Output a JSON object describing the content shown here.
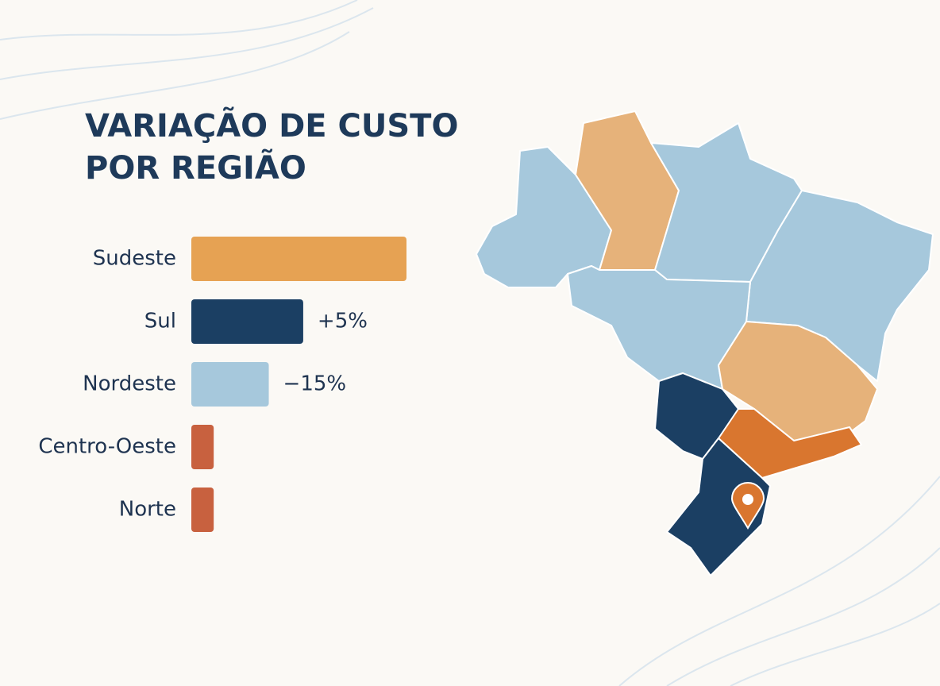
{
  "chart_data": {
    "type": "bar",
    "orientation": "horizontal",
    "title_lines": [
      "VARIAÇÃO DE CUSTO",
      "POR REGIÃO"
    ],
    "categories": [
      "Sudeste",
      "Sul",
      "Nordeste",
      "Centro-Oeste",
      "Norte"
    ],
    "values": [
      65,
      5,
      -15,
      -47,
      -47
    ],
    "value_labels": [
      null,
      "+5%",
      "−15%",
      null,
      null
    ],
    "colors": [
      "#e6a253",
      "#1b3f63",
      "#a6c8dc",
      "#c8613f",
      "#c8613f"
    ],
    "xlim": [
      -60,
      65
    ]
  }
}
